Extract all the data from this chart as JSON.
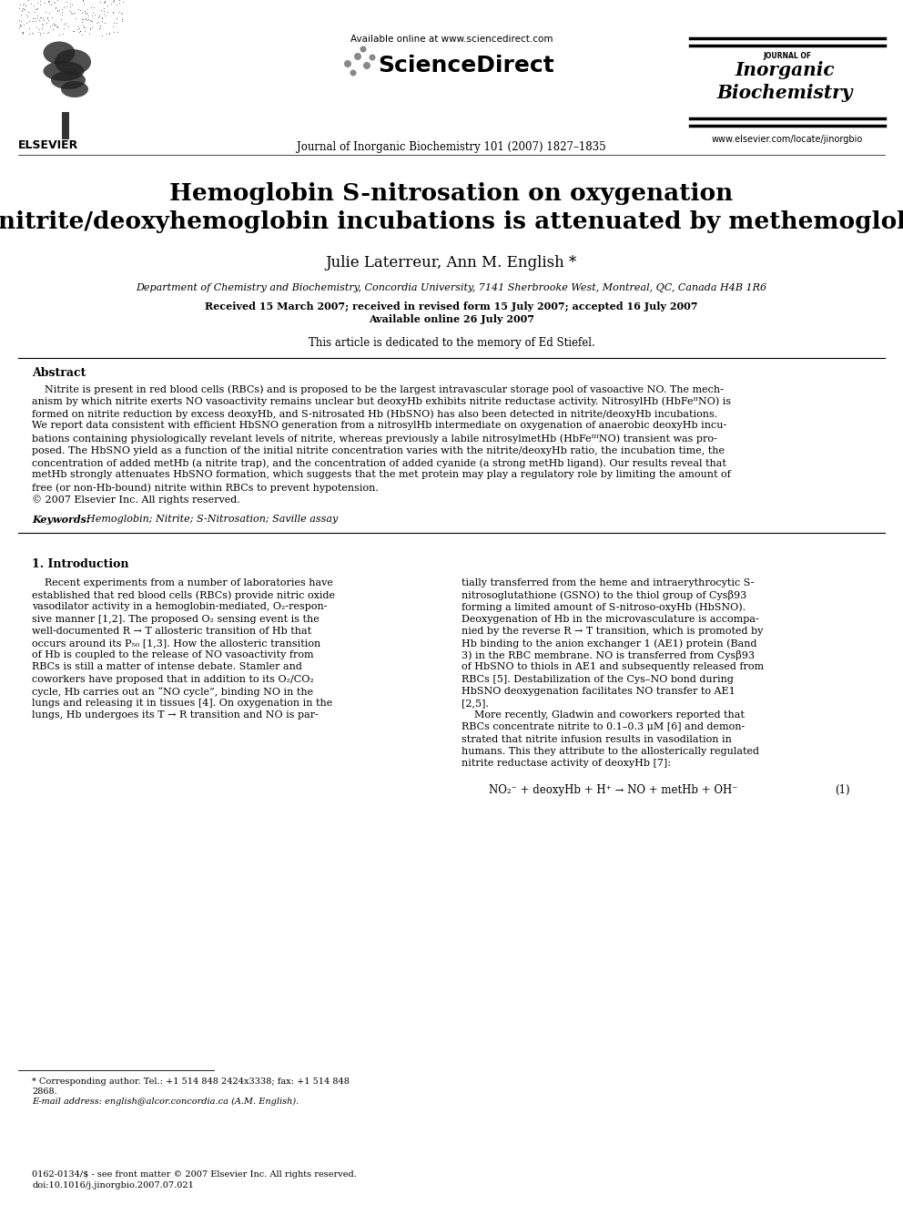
{
  "title_line1": "Hemoglobin S-nitrosation on oxygenation",
  "title_line2": "of nitrite/deoxyhemoglobin incubations is attenuated by methemoglobin",
  "authors": "Julie Laterreur, Ann M. English *",
  "affiliation": "Department of Chemistry and Biochemistry, Concordia University, 7141 Sherbrooke West, Montreal, QC, Canada H4B 1R6",
  "received": "Received 15 March 2007; received in revised form 15 July 2007; accepted 16 July 2007",
  "available": "Available online 26 July 2007",
  "dedication": "This article is dedicated to the memory of Ed Stiefel.",
  "journal_header": "Journal of Inorganic Biochemistry 101 (2007) 1827–1835",
  "available_online": "Available online at www.sciencedirect.com",
  "sciencedirect_text": "ScienceDirect",
  "elsevier_text": "ELSEVIER",
  "website": "www.elsevier.com/locate/jinorgbio",
  "abstract_title": "Abstract",
  "keywords_label": "Keywords:",
  "keywords_text": "  Hemoglobin; Nitrite; S-Nitrosation; Saville assay",
  "section1_title": "1. Introduction",
  "equation": "NO₂⁻ + deoxyHb + H⁺ → NO + metHb + OH⁻",
  "equation_number": "(1)",
  "footnote_star": "* Corresponding author. Tel.: +1 514 848 2424x3338; fax: +1 514 848",
  "footnote_star2": "2868.",
  "footnote_email": "E-mail address: english@alcor.concordia.ca (A.M. English).",
  "copyright1": "0162-0134/$ - see front matter © 2007 Elsevier Inc. All rights reserved.",
  "copyright2": "doi:10.1016/j.jinorgbio.2007.07.021",
  "bg_color": "#ffffff"
}
